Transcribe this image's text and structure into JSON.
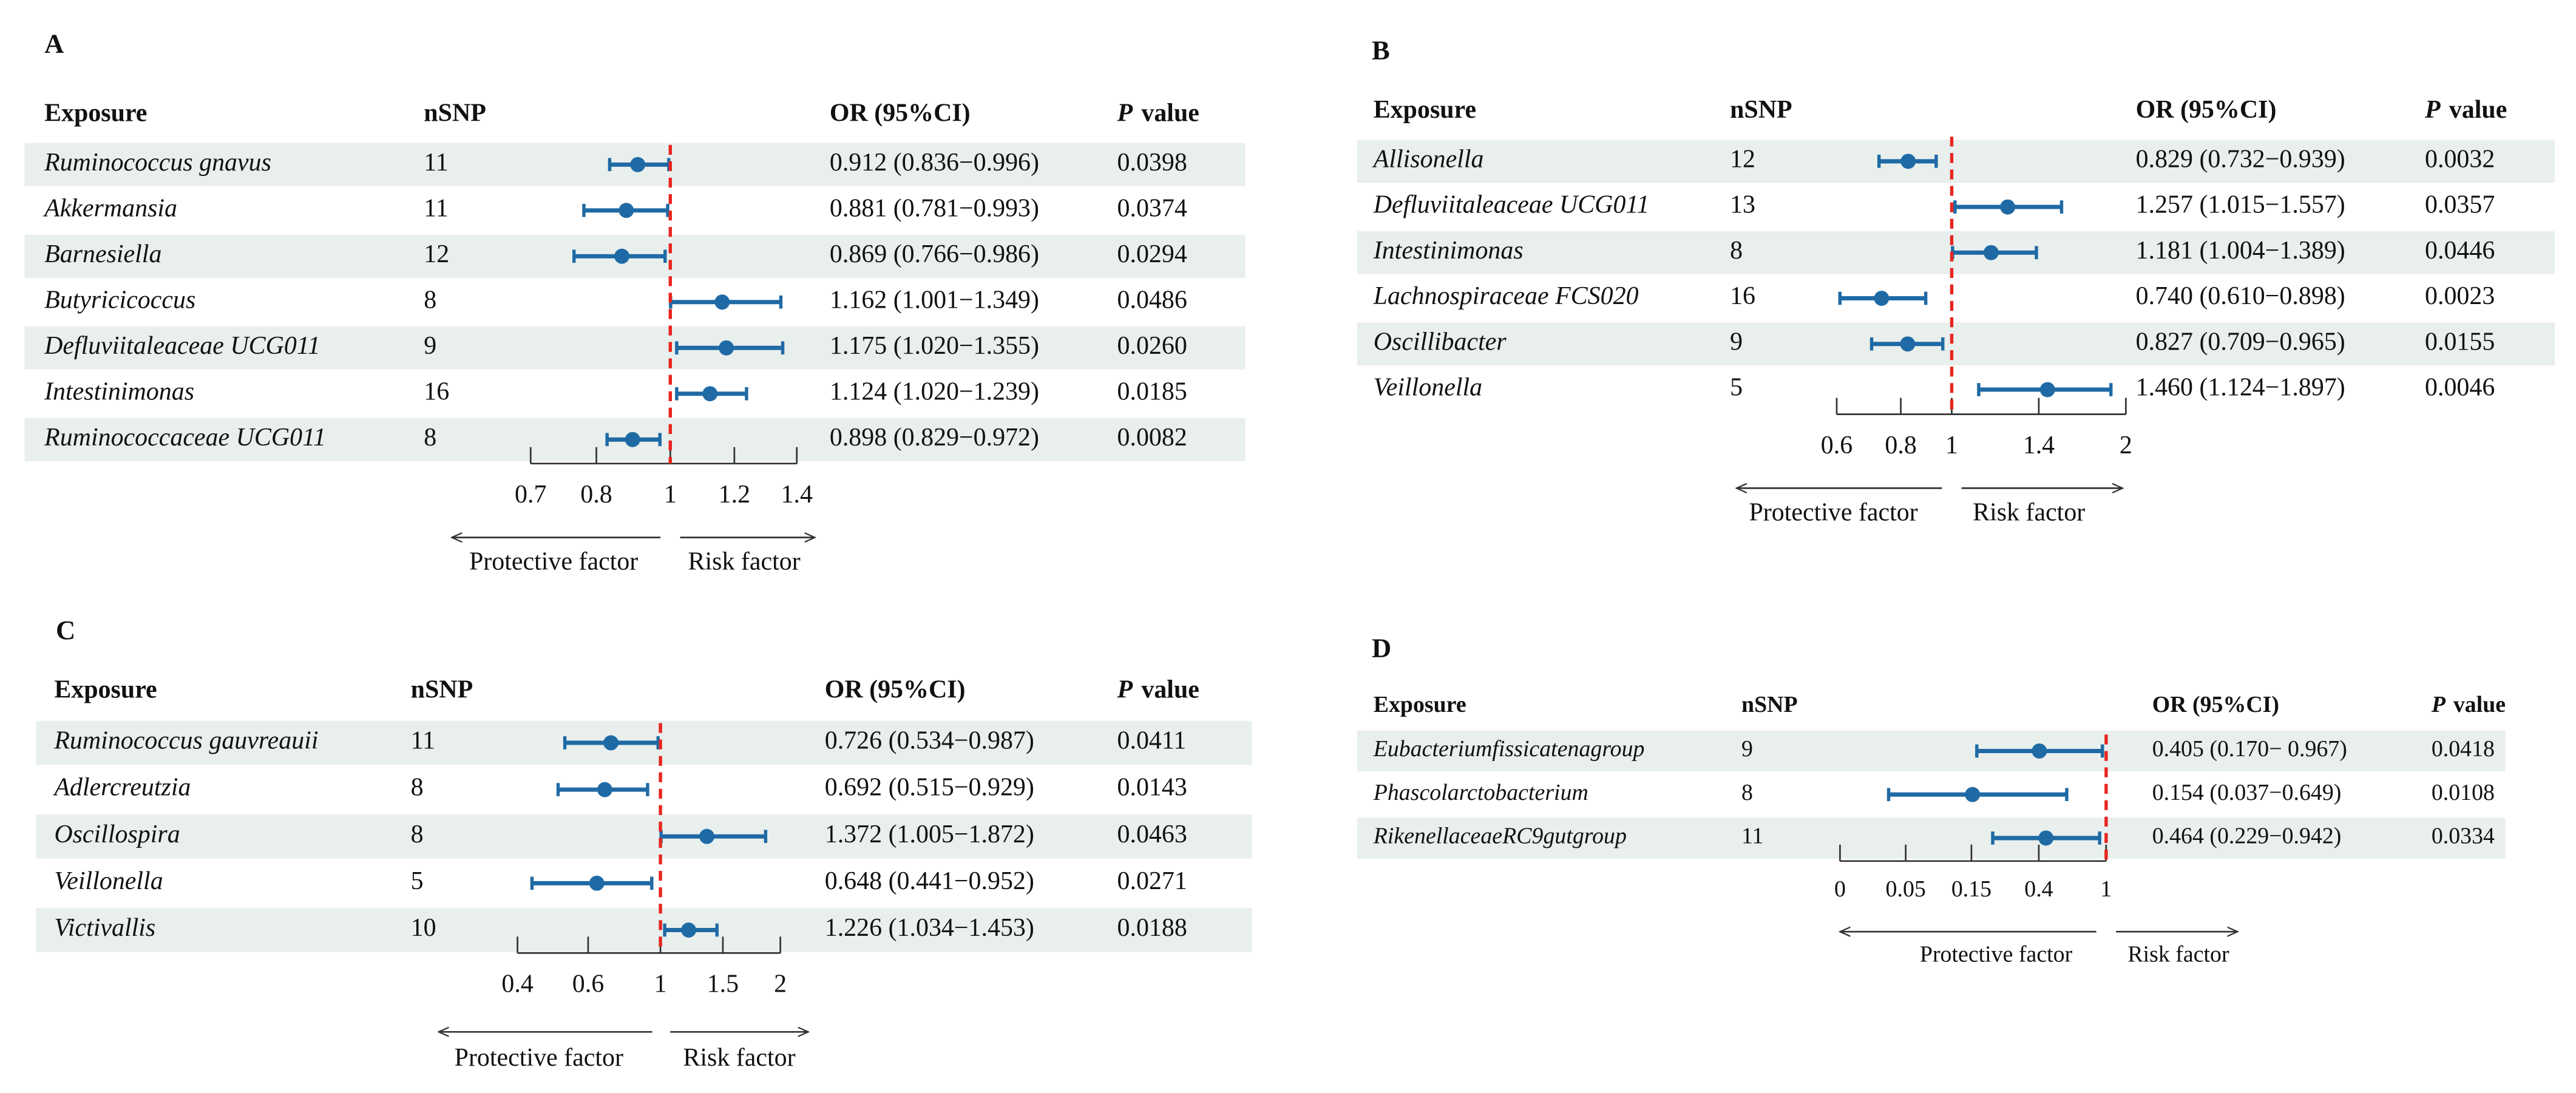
{
  "chart_data": [
    {
      "type": "forest",
      "panel": "A",
      "color": "#1f6aa5",
      "headers": {
        "exposure": "Exposure",
        "nsnp": "nSNP",
        "or_ci": "OR (95%CI)",
        "p_italic": "P",
        "p_rest": "value"
      },
      "rows": [
        {
          "exposure": "Ruminococcus gnavus",
          "nsnp": 11,
          "or": 0.912,
          "ci": [
            0.836,
            0.996
          ],
          "or_ci": "0.912 (0.836−0.996)",
          "p": "0.0398"
        },
        {
          "exposure": "Akkermansia",
          "nsnp": 11,
          "or": 0.881,
          "ci": [
            0.781,
            0.993
          ],
          "or_ci": "0.881 (0.781−0.993)",
          "p": "0.0374"
        },
        {
          "exposure": "Barnesiella",
          "nsnp": 12,
          "or": 0.869,
          "ci": [
            0.766,
            0.986
          ],
          "or_ci": "0.869 (0.766−0.986)",
          "p": "0.0294"
        },
        {
          "exposure": "Butyricicoccus",
          "nsnp": 8,
          "or": 1.162,
          "ci": [
            1.001,
            1.349
          ],
          "or_ci": "1.162 (1.001−1.349)",
          "p": "0.0486"
        },
        {
          "exposure": "Defluviitaleaceae UCG011",
          "nsnp": 9,
          "or": 1.175,
          "ci": [
            1.02,
            1.355
          ],
          "or_ci": "1.175 (1.020−1.355)",
          "p": "0.0260"
        },
        {
          "exposure": "Intestinimonas",
          "nsnp": 16,
          "or": 1.124,
          "ci": [
            1.02,
            1.239
          ],
          "or_ci": "1.124 (1.020−1.239)",
          "p": "0.0185"
        },
        {
          "exposure": "Ruminococcaceae UCG011",
          "nsnp": 8,
          "or": 0.898,
          "ci": [
            0.829,
            0.972
          ],
          "or_ci": "0.898 (0.829−0.972)",
          "p": "0.0082"
        }
      ],
      "xlim": [
        0.7,
        1.4
      ],
      "xticks": [
        0.7,
        0.8,
        1,
        1.2,
        1.4
      ],
      "reference": 1,
      "protective_label": "Protective factor",
      "risk_label": "Risk factor"
    },
    {
      "type": "forest",
      "panel": "B",
      "color": "#1f6aa5",
      "headers": {
        "exposure": "Exposure",
        "nsnp": "nSNP",
        "or_ci": "OR (95%CI)",
        "p_italic": "P",
        "p_rest": "value"
      },
      "rows": [
        {
          "exposure": "Allisonella",
          "nsnp": 12,
          "or": 0.829,
          "ci": [
            0.732,
            0.939
          ],
          "or_ci": "0.829 (0.732−0.939)",
          "p": "0.0032"
        },
        {
          "exposure": "Defluviitaleaceae UCG011",
          "nsnp": 13,
          "or": 1.257,
          "ci": [
            1.015,
            1.557
          ],
          "or_ci": "1.257 (1.015−1.557)",
          "p": "0.0357"
        },
        {
          "exposure": "Intestinimonas",
          "nsnp": 8,
          "or": 1.181,
          "ci": [
            1.004,
            1.389
          ],
          "or_ci": "1.181 (1.004−1.389)",
          "p": "0.0446"
        },
        {
          "exposure": "Lachnospiraceae FCS020",
          "nsnp": 16,
          "or": 0.74,
          "ci": [
            0.61,
            0.898
          ],
          "or_ci": "0.740 (0.610−0.898)",
          "p": "0.0023"
        },
        {
          "exposure": "Oscillibacter",
          "nsnp": 9,
          "or": 0.827,
          "ci": [
            0.709,
            0.965
          ],
          "or_ci": "0.827 (0.709−0.965)",
          "p": "0.0155"
        },
        {
          "exposure": "Veillonella",
          "nsnp": 5,
          "or": 1.46,
          "ci": [
            1.124,
            1.897
          ],
          "or_ci": "1.460 (1.124−1.897)",
          "p": "0.0046"
        }
      ],
      "xlim": [
        0.6,
        2
      ],
      "xticks": [
        0.6,
        0.8,
        1,
        1.4,
        2
      ],
      "reference": 1,
      "protective_label": "Protective factor",
      "risk_label": "Risk factor"
    },
    {
      "type": "forest",
      "panel": "C",
      "color": "#1f6aa5",
      "headers": {
        "exposure": "Exposure",
        "nsnp": "nSNP",
        "or_ci": "OR (95%CI)",
        "p_italic": "P",
        "p_rest": "value"
      },
      "rows": [
        {
          "exposure": "Ruminococcus gauvreauii",
          "nsnp": 11,
          "or": 0.726,
          "ci": [
            0.534,
            0.987
          ],
          "or_ci": "0.726 (0.534−0.987)",
          "p": "0.0411"
        },
        {
          "exposure": "Adlercreutzia",
          "nsnp": 8,
          "or": 0.692,
          "ci": [
            0.515,
            0.929
          ],
          "or_ci": "0.692 (0.515−0.929)",
          "p": "0.0143"
        },
        {
          "exposure": "Oscillospira",
          "nsnp": 8,
          "or": 1.372,
          "ci": [
            1.005,
            1.872
          ],
          "or_ci": "1.372 (1.005−1.872)",
          "p": "0.0463"
        },
        {
          "exposure": "Veillonella",
          "nsnp": 5,
          "or": 0.648,
          "ci": [
            0.441,
            0.952
          ],
          "or_ci": "0.648 (0.441−0.952)",
          "p": "0.0271"
        },
        {
          "exposure": "Victivallis",
          "nsnp": 10,
          "or": 1.226,
          "ci": [
            1.034,
            1.453
          ],
          "or_ci": "1.226 (1.034−1.453)",
          "p": "0.0188"
        }
      ],
      "xlim": [
        0.4,
        2
      ],
      "xticks": [
        0.4,
        0.6,
        1,
        1.5,
        2
      ],
      "reference": 1,
      "protective_label": "Protective factor",
      "risk_label": "Risk factor"
    },
    {
      "type": "forest",
      "panel": "D",
      "color": "#1f6aa5",
      "headers": {
        "exposure": "Exposure",
        "nsnp": "nSNP",
        "or_ci": "OR (95%CI)",
        "p_italic": "P",
        "p_rest": "value"
      },
      "rows": [
        {
          "exposure": "Eubacteriumfissicatenagroup",
          "nsnp": 9,
          "or": 0.405,
          "ci": [
            0.17,
            0.967
          ],
          "or_ci": "0.405 (0.170− 0.967)",
          "p": "0.0418"
        },
        {
          "exposure": "Phascolarctobacterium",
          "nsnp": 8,
          "or": 0.154,
          "ci": [
            0.037,
            0.649
          ],
          "or_ci": "0.154 (0.037−0.649)",
          "p": "0.0108"
        },
        {
          "exposure": "RikenellaceaeRC9gutgroup",
          "nsnp": 11,
          "or": 0.464,
          "ci": [
            0.229,
            0.942
          ],
          "or_ci": "0.464 (0.229−0.942)",
          "p": "0.0334"
        }
      ],
      "xlim": [
        0,
        1
      ],
      "xticks": [
        0,
        0.05,
        0.15,
        0.4,
        1
      ],
      "reference": 1,
      "protective_label": "Protective factor",
      "risk_label": "Risk factor"
    }
  ]
}
